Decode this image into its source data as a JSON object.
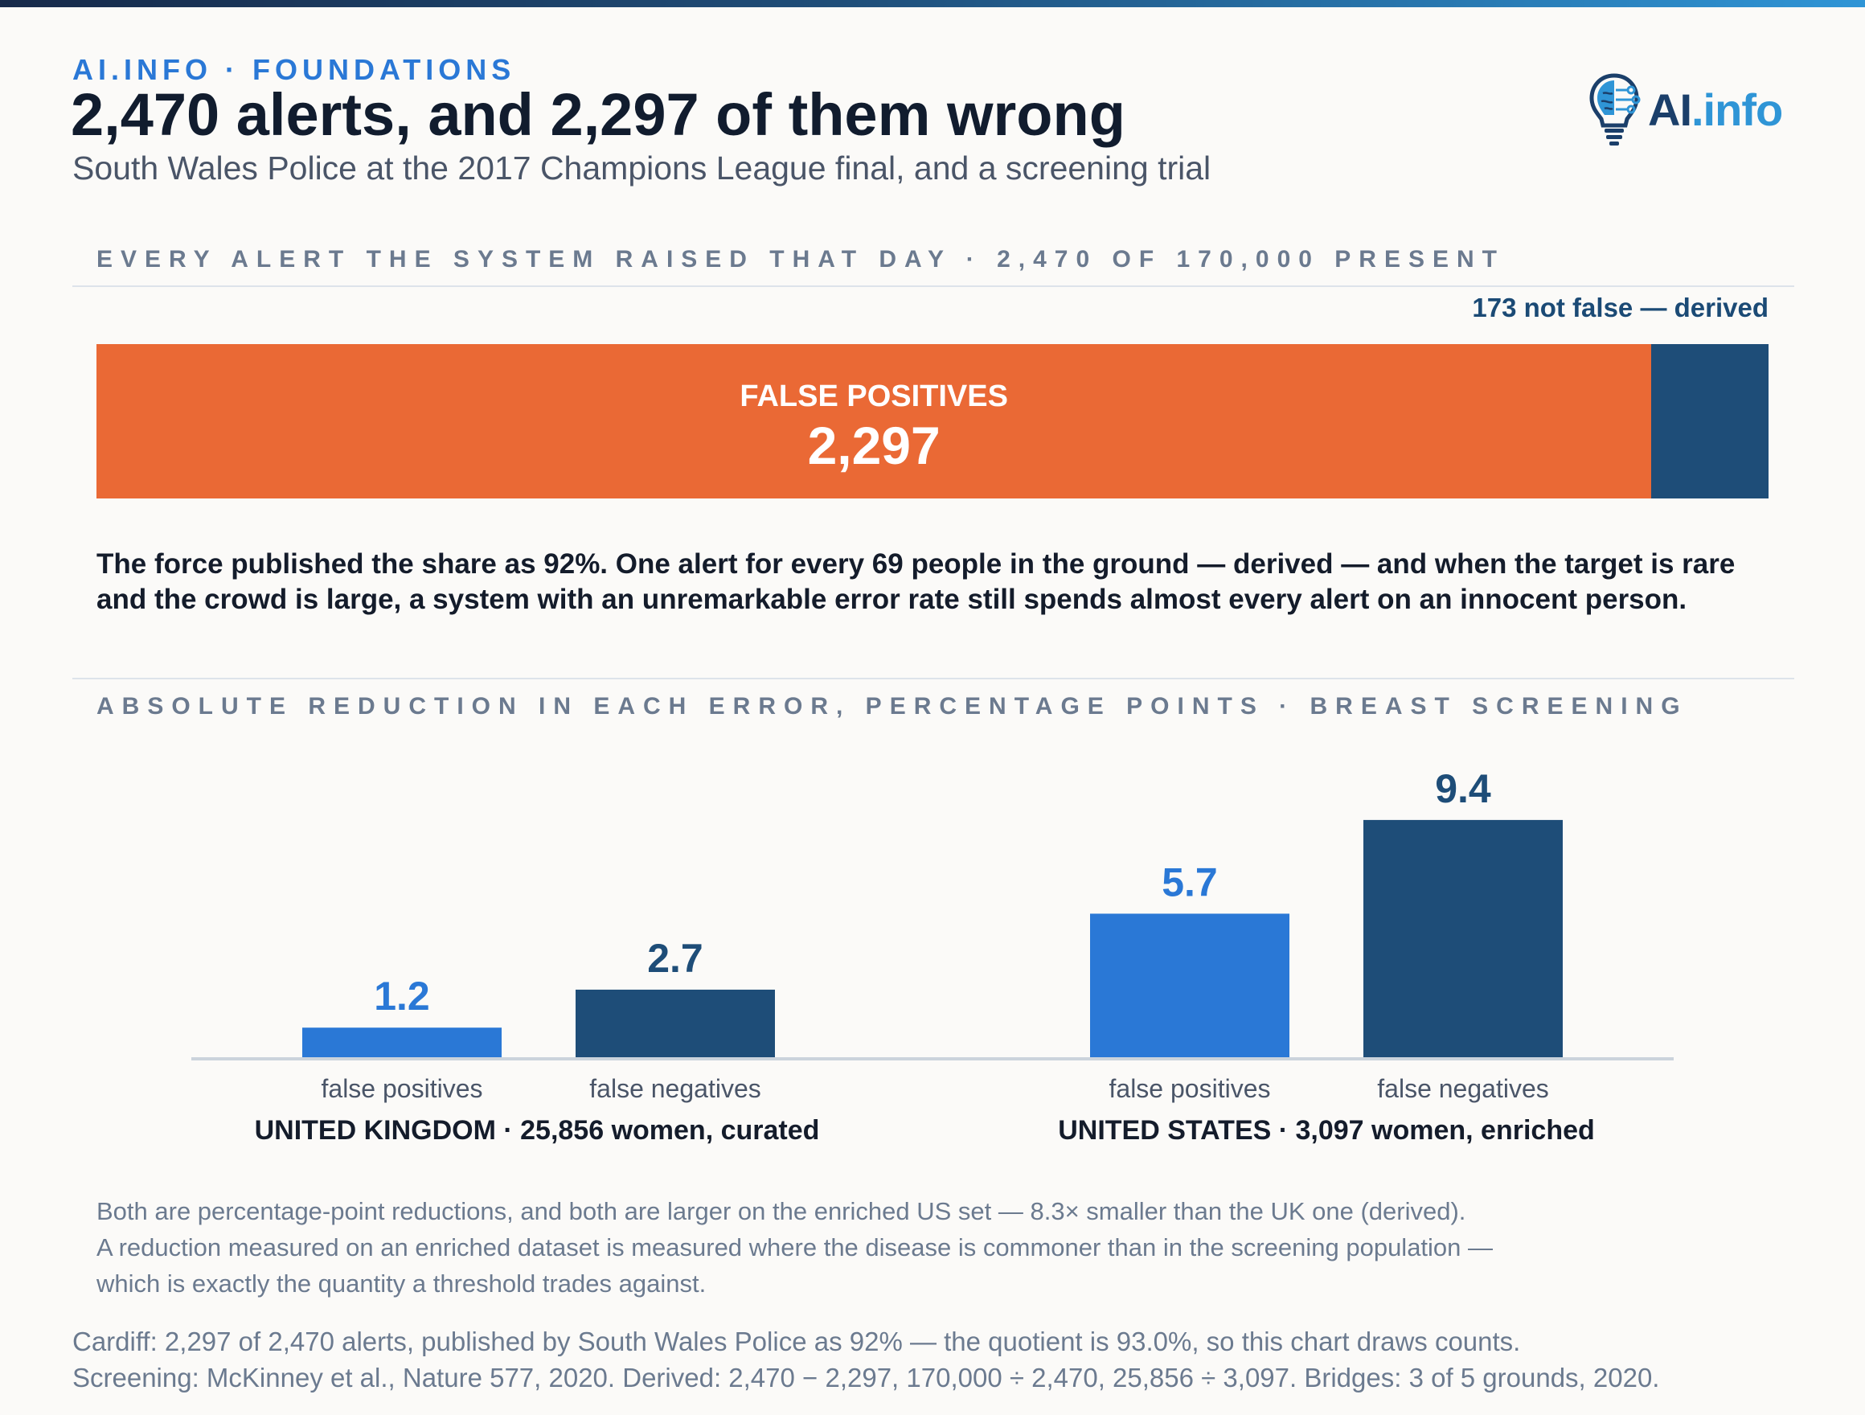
{
  "header": {
    "kicker": "AI.INFO · FOUNDATIONS",
    "title": "2,470 alerts, and 2,297 of them wrong",
    "subtitle": "South Wales Police at the 2017 Champions League final, and a screening trial"
  },
  "logo": {
    "text_ai": "AI",
    "text_info": ".info"
  },
  "section1": {
    "heading": "EVERY ALERT THE SYSTEM RAISED THAT DAY · 2,470 OF 170,000 PRESENT",
    "derived_note": "173 not false — derived",
    "lede_line1": "The force published the share as 92%. One alert for every 69 people in the ground — derived — and when the target is rare",
    "lede_line2": "and the crowd is large, a system with an unremarkable error rate still spends almost every alert on an innocent person."
  },
  "section2": {
    "heading": "ABSOLUTE REDUCTION IN EACH ERROR, PERCENTAGE POINTS · BREAST SCREENING",
    "note_lines": [
      "Both are percentage-point reductions, and both are larger on the enriched US set — 8.3× smaller than the UK one (derived).",
      "A reduction measured on an enriched dataset is measured where the disease is commoner than in the screening population —",
      "which is exactly the quantity a threshold trades against."
    ]
  },
  "footer": {
    "source_lines": [
      "Cardiff: 2,297 of 2,470 alerts, published by South Wales Police as 92% — the quotient is 93.0%, so this chart draws counts.",
      "Screening: McKinney et al., Nature 577, 2020. Derived: 2,470 − 2,297, 170,000 ÷ 2,470, 25,856 ÷ 3,097. Bridges: 3 of 5 grounds, 2020."
    ]
  },
  "colors": {
    "false_positive": "#ea6935",
    "not_false": "#1e4d78",
    "bar_fp": "#2a78d6",
    "bar_fn": "#1e4d78",
    "accent": "#2a78d6"
  },
  "chart_data": [
    {
      "type": "bar",
      "orientation": "horizontal-stacked",
      "total": 2470,
      "segments": [
        {
          "label": "FALSE POSITIVES",
          "value": 2297,
          "value_label": "2,297"
        },
        {
          "label": "",
          "value": 173
        }
      ]
    },
    {
      "type": "bar",
      "ylabel": "",
      "groups": [
        {
          "label": "UNITED KINGDOM · 25,856 women, curated",
          "bars": [
            {
              "category": "false positives",
              "value": 1.2
            },
            {
              "category": "false negatives",
              "value": 2.7
            }
          ]
        },
        {
          "label": "UNITED STATES · 3,097 women, enriched",
          "bars": [
            {
              "category": "false positives",
              "value": 5.7
            },
            {
              "category": "false negatives",
              "value": 9.4
            }
          ]
        }
      ]
    }
  ]
}
